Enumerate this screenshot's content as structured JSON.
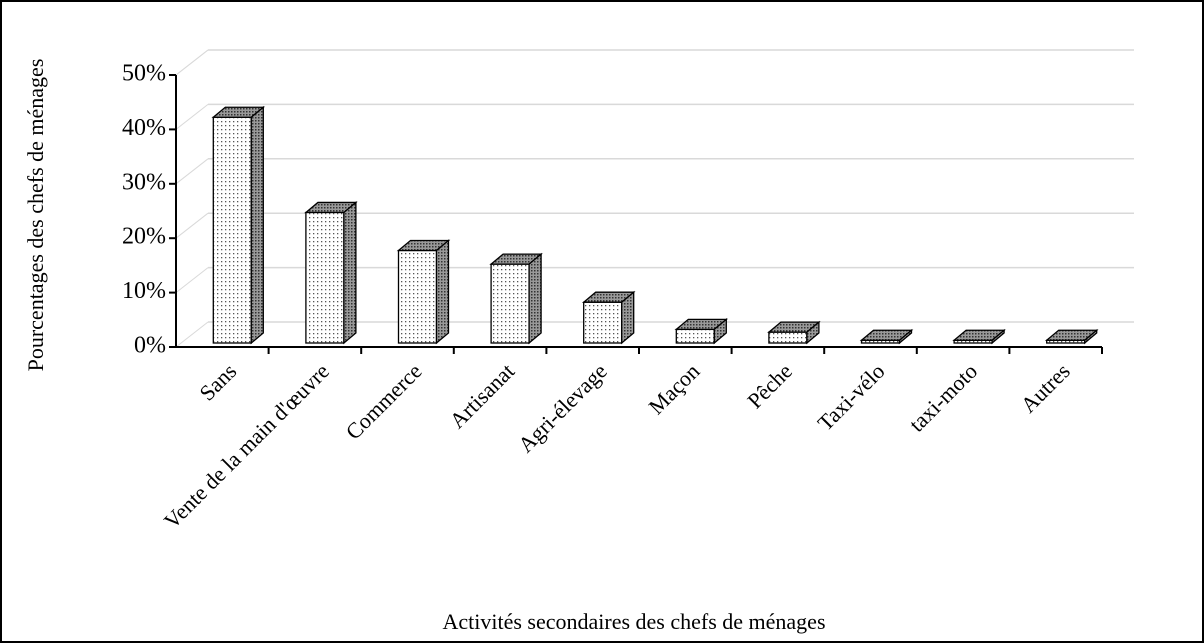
{
  "chart_data": {
    "type": "bar",
    "categories": [
      "Sans",
      "Vente de la main d'œuvre",
      "Commerce",
      "Artisanat",
      "Agri-élevage",
      "Maçon",
      "Pêche",
      "Taxi-vélo",
      "taxi-moto",
      "Autres"
    ],
    "values": [
      41.5,
      24,
      17,
      14.5,
      7.5,
      2.5,
      2,
      0.5,
      0.5,
      0.5
    ],
    "ylim": [
      0,
      50
    ],
    "yticks": [
      {
        "value": 0,
        "label": "0%"
      },
      {
        "value": 10,
        "label": "10%"
      },
      {
        "value": 20,
        "label": "20%"
      },
      {
        "value": 30,
        "label": "30%"
      },
      {
        "value": 40,
        "label": "40%"
      },
      {
        "value": 50,
        "label": "50%"
      }
    ],
    "xlabel": "Activités secondaires des chefs de ménages",
    "ylabel": "Pourcentages des chefs de ménages",
    "grid": true
  }
}
